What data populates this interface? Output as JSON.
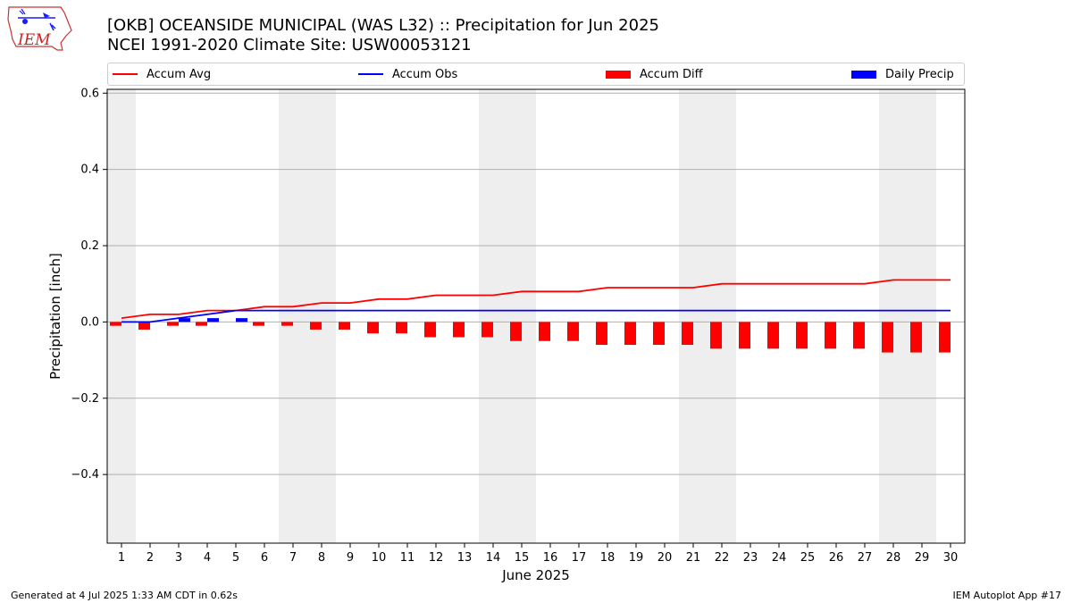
{
  "header": {
    "logo_text": "IEM",
    "title": "[OKB] OCEANSIDE MUNICIPAL (WAS L32) :: Precipitation for Jun 2025",
    "subtitle": "NCEI 1991-2020 Climate Site: USW00053121"
  },
  "footer": {
    "generated": "Generated at 4 Jul 2025 1:33 AM CDT in 0.62s",
    "app": "IEM Autoplot App #17"
  },
  "chart_data": {
    "type": "bar",
    "xlabel": "June 2025",
    "ylabel": "Precipitation [inch]",
    "xlim": [
      0.5,
      30.5
    ],
    "ylim": [
      -0.58,
      0.61
    ],
    "x_ticks": [
      1,
      2,
      3,
      4,
      5,
      6,
      7,
      8,
      9,
      10,
      11,
      12,
      13,
      14,
      15,
      16,
      17,
      18,
      19,
      20,
      21,
      22,
      23,
      24,
      25,
      26,
      27,
      28,
      29,
      30
    ],
    "y_ticks": [
      -0.4,
      -0.2,
      0.0,
      0.2,
      0.4,
      0.6
    ],
    "y_tick_labels": [
      "−0.4",
      "−0.2",
      "0.0",
      "0.2",
      "0.4",
      "0.6"
    ],
    "grid": "horizontal",
    "legend_position": "top",
    "weekend_shading": [
      [
        0.5,
        1.5
      ],
      [
        6.5,
        8.5
      ],
      [
        13.5,
        15.5
      ],
      [
        20.5,
        22.5
      ],
      [
        27.5,
        29.5
      ]
    ],
    "days": [
      1,
      2,
      3,
      4,
      5,
      6,
      7,
      8,
      9,
      10,
      11,
      12,
      13,
      14,
      15,
      16,
      17,
      18,
      19,
      20,
      21,
      22,
      23,
      24,
      25,
      26,
      27,
      28,
      29,
      30
    ],
    "series": [
      {
        "name": "Accum Avg",
        "kind": "line",
        "color": "#ff0000",
        "values": [
          0.01,
          0.02,
          0.02,
          0.03,
          0.03,
          0.04,
          0.04,
          0.05,
          0.05,
          0.06,
          0.06,
          0.07,
          0.07,
          0.07,
          0.08,
          0.08,
          0.08,
          0.09,
          0.09,
          0.09,
          0.09,
          0.1,
          0.1,
          0.1,
          0.1,
          0.1,
          0.1,
          0.11,
          0.11,
          0.11
        ]
      },
      {
        "name": "Accum Obs",
        "kind": "line",
        "color": "#0000ff",
        "values": [
          0.0,
          0.0,
          0.01,
          0.02,
          0.03,
          0.03,
          0.03,
          0.03,
          0.03,
          0.03,
          0.03,
          0.03,
          0.03,
          0.03,
          0.03,
          0.03,
          0.03,
          0.03,
          0.03,
          0.03,
          0.03,
          0.03,
          0.03,
          0.03,
          0.03,
          0.03,
          0.03,
          0.03,
          0.03,
          0.03
        ]
      },
      {
        "name": "Accum Diff",
        "kind": "bar",
        "color": "#ff0000",
        "values": [
          -0.01,
          -0.02,
          -0.01,
          -0.01,
          0.0,
          -0.01,
          -0.01,
          -0.02,
          -0.02,
          -0.03,
          -0.03,
          -0.04,
          -0.04,
          -0.04,
          -0.05,
          -0.05,
          -0.05,
          -0.06,
          -0.06,
          -0.06,
          -0.06,
          -0.07,
          -0.07,
          -0.07,
          -0.07,
          -0.07,
          -0.07,
          -0.08,
          -0.08,
          -0.08
        ]
      },
      {
        "name": "Daily Precip",
        "kind": "bar",
        "color": "#0000ff",
        "values": [
          0.0,
          0.0,
          0.01,
          0.01,
          0.01,
          0.0,
          0.0,
          0.0,
          0.0,
          0.0,
          0.0,
          0.0,
          0.0,
          0.0,
          0.0,
          0.0,
          0.0,
          0.0,
          0.0,
          0.0,
          0.0,
          0.0,
          0.0,
          0.0,
          0.0,
          0.0,
          0.0,
          0.0,
          0.0,
          0.0
        ]
      }
    ]
  }
}
